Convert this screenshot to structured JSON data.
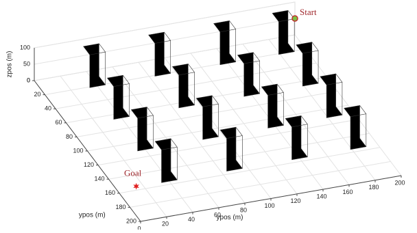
{
  "chart_data": {
    "type": "scatter3d",
    "x_label": "ypos (m)",
    "y_label": "ypos (m)",
    "z_label": "zpos (m)",
    "xlim": [
      0,
      200
    ],
    "ylim": [
      0,
      200
    ],
    "zlim": [
      0,
      100
    ],
    "xticks": [
      0,
      20,
      40,
      60,
      80,
      100,
      120,
      140,
      160,
      180,
      200
    ],
    "yticks": [
      0,
      20,
      40,
      60,
      80,
      100,
      120,
      140,
      160,
      180,
      200
    ],
    "zticks": [
      0,
      50,
      100
    ],
    "grid": true,
    "obstacles": {
      "color": "#000000",
      "x": [
        40,
        40,
        40,
        40,
        90,
        90,
        90,
        90,
        140,
        140,
        140,
        140,
        185,
        185,
        185,
        185
      ],
      "y": [
        15,
        60,
        105,
        150,
        15,
        60,
        105,
        150,
        15,
        60,
        105,
        150,
        15,
        60,
        105,
        150
      ],
      "height": [
        100,
        100,
        100,
        100,
        100,
        100,
        100,
        100,
        100,
        100,
        100,
        100,
        100,
        100,
        100,
        100
      ]
    },
    "start": {
      "label": "Start",
      "x": 200,
      "y": 0,
      "z": 50,
      "color": "#7cc242"
    },
    "goal": {
      "label": "Goal",
      "x": 15,
      "y": 155,
      "z": 0,
      "color": "#e02020"
    }
  }
}
